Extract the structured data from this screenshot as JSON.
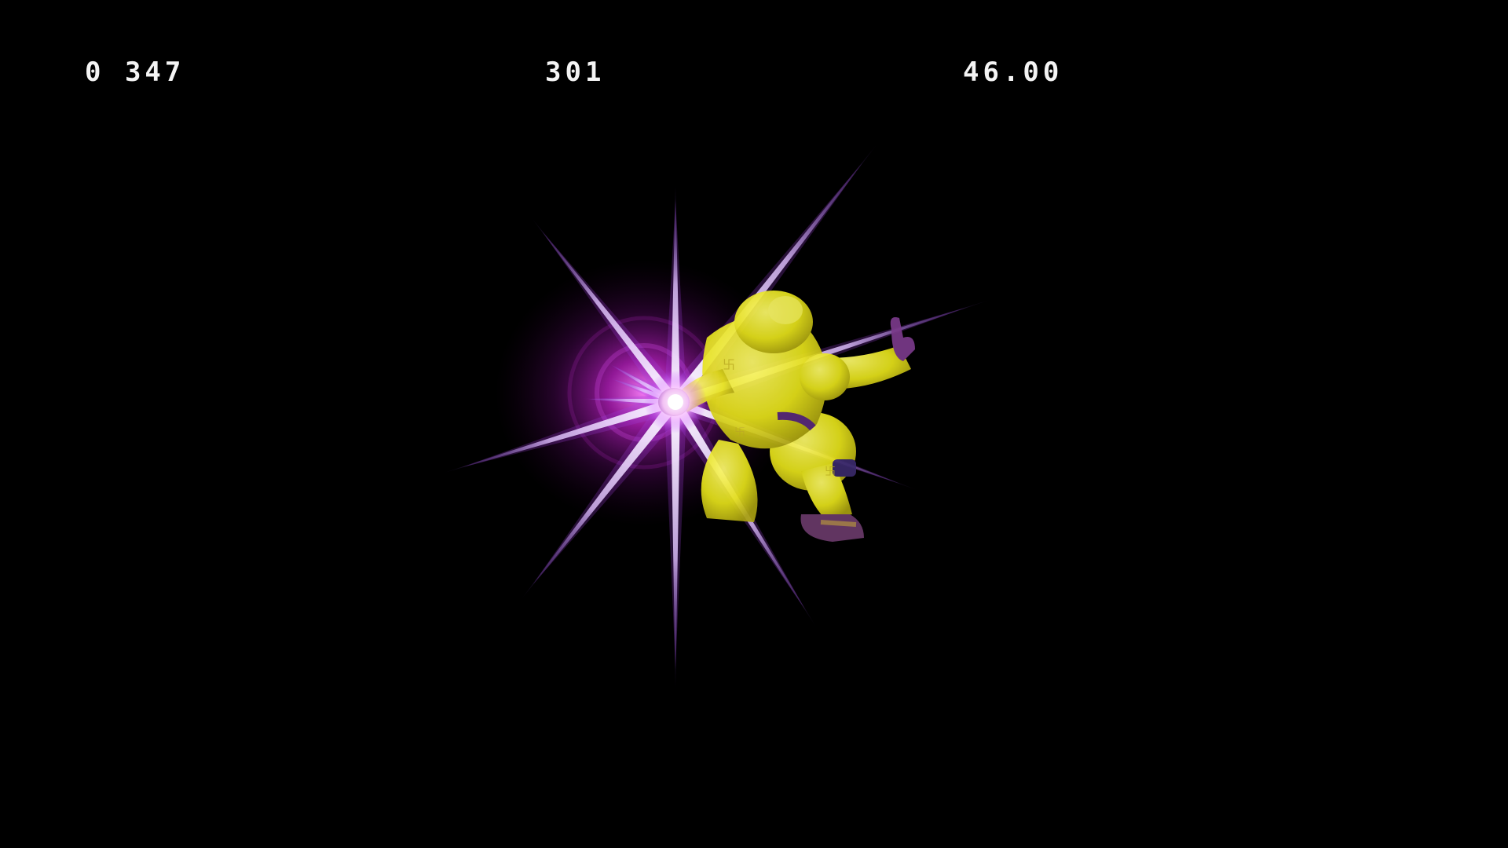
{
  "hud": {
    "frame_counter": "0 347",
    "hitstun": "301",
    "damage_percent": "46.00"
  },
  "effects": {
    "impact_flash": {
      "icon": "starburst-hit-effect",
      "glow_color": "#c020c8",
      "core_color": "#ffffff",
      "ray_tint": "#b070ff"
    },
    "fighter": {
      "icon": "fighter-character",
      "body_color": "#e6e21a",
      "shade_color": "#a8a010",
      "accent_color": "#7a3a8a"
    }
  }
}
